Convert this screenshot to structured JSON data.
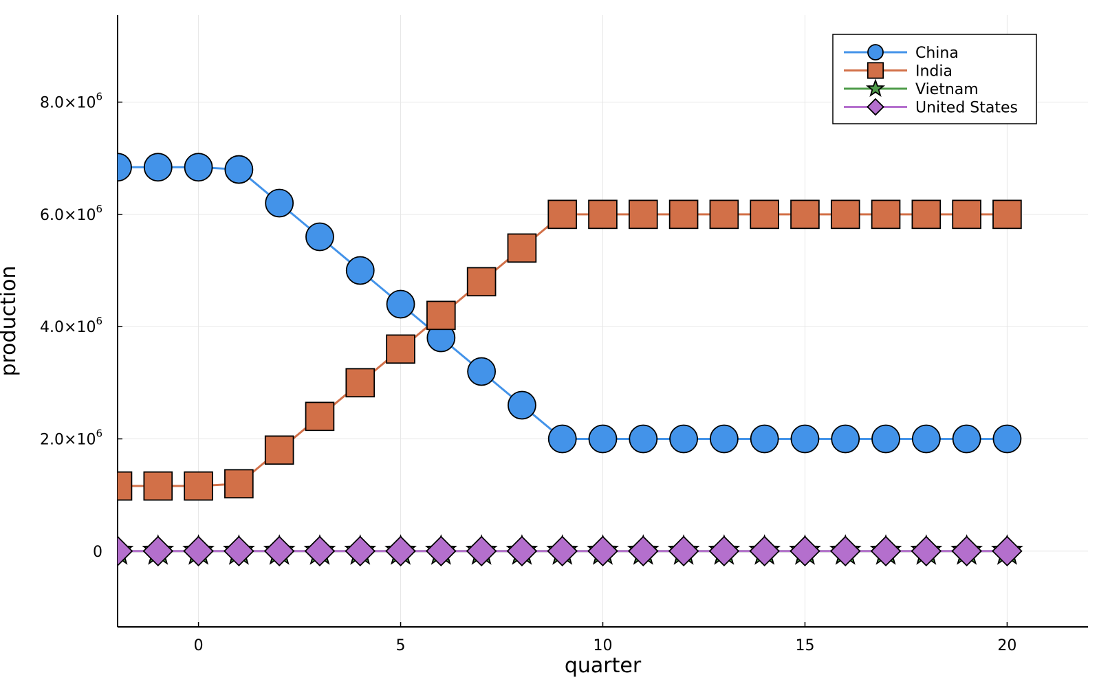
{
  "chart_data": {
    "type": "line",
    "title": "",
    "xlabel": "quarter",
    "ylabel": "production",
    "x": [
      -2,
      -1,
      0,
      1,
      2,
      3,
      4,
      5,
      6,
      7,
      8,
      9,
      10,
      11,
      12,
      13,
      14,
      15,
      16,
      17,
      18,
      19,
      20
    ],
    "xlim": [
      -2,
      22
    ],
    "ylim": [
      -1350000,
      9550000
    ],
    "x_ticks": [
      0,
      5,
      10,
      15,
      20
    ],
    "x_tick_labels": [
      "0",
      "5",
      "10",
      "15",
      "20"
    ],
    "y_ticks": [
      0,
      2000000,
      4000000,
      6000000,
      8000000
    ],
    "y_tick_labels": [
      {
        "mantissa": "0",
        "exponent": ""
      },
      {
        "mantissa": "2.0×10",
        "exponent": "6"
      },
      {
        "mantissa": "4.0×10",
        "exponent": "6"
      },
      {
        "mantissa": "6.0×10",
        "exponent": "6"
      },
      {
        "mantissa": "8.0×10",
        "exponent": "6"
      }
    ],
    "grid": true,
    "legend_position": "top-right",
    "series": [
      {
        "name": "China",
        "color": "#4393e9",
        "marker": "circle",
        "values": [
          6840000,
          6840000,
          6840000,
          6800000,
          6200000,
          5600000,
          5000000,
          4400000,
          3800000,
          3200000,
          2600000,
          2000000,
          2000000,
          2000000,
          2000000,
          2000000,
          2000000,
          2000000,
          2000000,
          2000000,
          2000000,
          2000000,
          2000000
        ]
      },
      {
        "name": "India",
        "color": "#d27048",
        "marker": "square",
        "values": [
          1160000,
          1160000,
          1160000,
          1200000,
          1800000,
          2400000,
          3000000,
          3600000,
          4200000,
          4800000,
          5400000,
          6000000,
          6000000,
          6000000,
          6000000,
          6000000,
          6000000,
          6000000,
          6000000,
          6000000,
          6000000,
          6000000,
          6000000
        ]
      },
      {
        "name": "Vietnam",
        "color": "#4f9c4a",
        "marker": "star",
        "values": [
          0,
          0,
          0,
          0,
          0,
          0,
          0,
          0,
          0,
          0,
          0,
          0,
          0,
          0,
          0,
          0,
          0,
          0,
          0,
          0,
          0,
          0,
          0
        ]
      },
      {
        "name": "United States",
        "color": "#b46fcd",
        "marker": "diamond",
        "values": [
          0,
          0,
          0,
          0,
          0,
          0,
          0,
          0,
          0,
          0,
          0,
          0,
          0,
          0,
          0,
          0,
          0,
          0,
          0,
          0,
          0,
          0,
          0
        ]
      }
    ]
  }
}
